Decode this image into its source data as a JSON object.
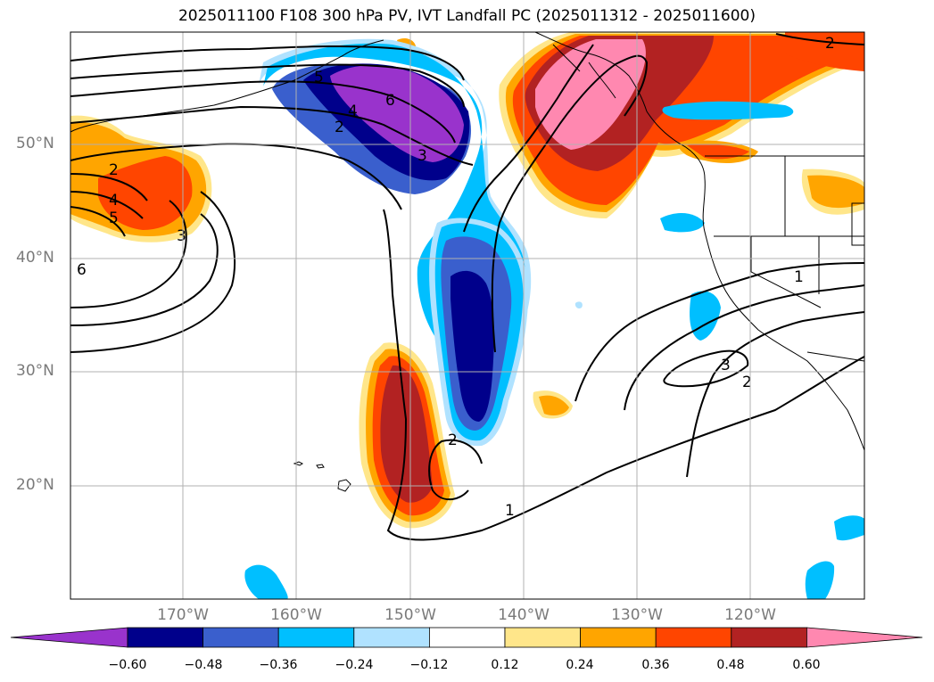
{
  "title": "2025011100 F108 300 hPa PV, IVT Landfall PC (2025011312 - 2025011600)",
  "lat_labels": [
    "50°N",
    "40°N",
    "30°N",
    "20°N"
  ],
  "lon_labels": [
    "170°W",
    "160°W",
    "150°W",
    "140°W",
    "130°W",
    "120°W"
  ],
  "colorbar": {
    "ticks": [
      "−0.60",
      "−0.48",
      "−0.36",
      "−0.24",
      "−0.12",
      "0.12",
      "0.24",
      "0.36",
      "0.48",
      "0.60"
    ],
    "colors": [
      "#9933cc",
      "#00008b",
      "#3a5fcd",
      "#00bfff",
      "#b0e2ff",
      "#ffffff",
      "#ffe68a",
      "#ffa500",
      "#ff4500",
      "#b22222",
      "#ff88b0"
    ]
  },
  "contour_labels": [
    "1",
    "1",
    "2",
    "2",
    "2",
    "2",
    "2",
    "3",
    "3",
    "3",
    "4",
    "4",
    "5",
    "5",
    "6",
    "6"
  ]
}
